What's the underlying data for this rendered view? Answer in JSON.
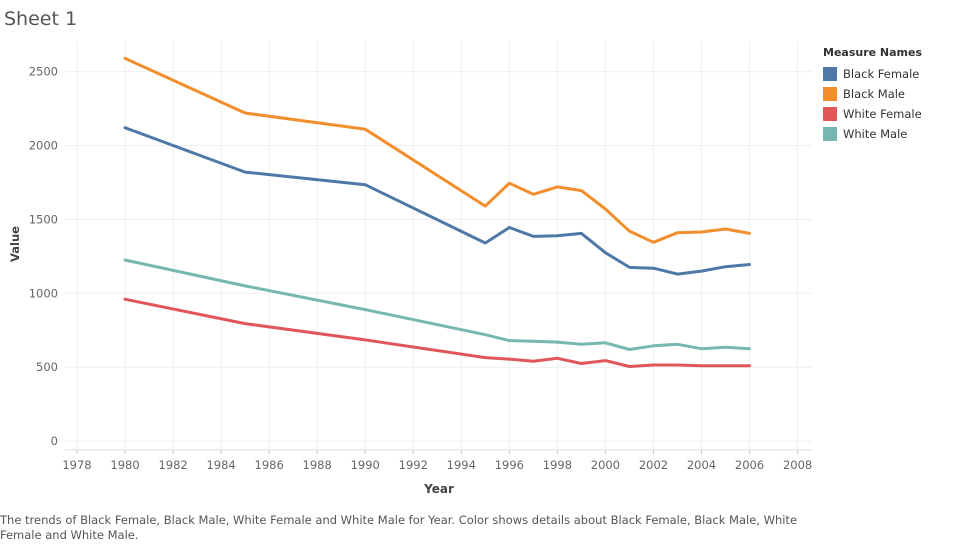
{
  "sheet_title": "Sheet 1",
  "caption": "The trends of Black Female, Black Male, White Female and White Male for Year.  Color shows details about Black Female, Black Male, White Female and White Male.",
  "legend": {
    "title": "Measure Names",
    "items": [
      {
        "label": "Black Female",
        "color": "#4e79a7"
      },
      {
        "label": "Black Male",
        "color": "#f28e2b"
      },
      {
        "label": "White Female",
        "color": "#e15759"
      },
      {
        "label": "White Male",
        "color": "#76b7b2"
      }
    ]
  },
  "chart_data": {
    "type": "line",
    "xlabel": "Year",
    "ylabel": "Value",
    "xlim": [
      1977.5,
      2008.6
    ],
    "ylim": [
      -60,
      2700
    ],
    "xticks": [
      1978,
      1980,
      1982,
      1984,
      1986,
      1988,
      1990,
      1992,
      1994,
      1996,
      1998,
      2000,
      2002,
      2004,
      2006,
      2008
    ],
    "yticks": [
      0,
      500,
      1000,
      1500,
      2000,
      2500
    ],
    "grid": true,
    "legend_position": "right",
    "series": [
      {
        "name": "Black Female",
        "color": "#4e79a7",
        "x": [
          1980,
          1985,
          1990,
          1995,
          1996,
          1997,
          1998,
          1999,
          2000,
          2001,
          2002,
          2003,
          2004,
          2005,
          2006
        ],
        "y": [
          2120,
          1820,
          1735,
          1340,
          1445,
          1385,
          1390,
          1405,
          1275,
          1175,
          1170,
          1130,
          1150,
          1180,
          1195
        ]
      },
      {
        "name": "Black Male",
        "color": "#f28e2b",
        "x": [
          1980,
          1985,
          1990,
          1995,
          1996,
          1997,
          1998,
          1999,
          2000,
          2001,
          2002,
          2003,
          2004,
          2005,
          2006
        ],
        "y": [
          2590,
          2220,
          2110,
          1590,
          1745,
          1670,
          1720,
          1695,
          1570,
          1420,
          1345,
          1410,
          1415,
          1435,
          1405
        ]
      },
      {
        "name": "White Female",
        "color": "#e15759",
        "x": [
          1980,
          1985,
          1990,
          1995,
          1996,
          1997,
          1998,
          1999,
          2000,
          2001,
          2002,
          2003,
          2004,
          2005,
          2006
        ],
        "y": [
          960,
          795,
          685,
          565,
          555,
          540,
          560,
          525,
          545,
          505,
          515,
          515,
          510,
          510,
          510
        ]
      },
      {
        "name": "White Male",
        "color": "#76b7b2",
        "x": [
          1980,
          1985,
          1990,
          1995,
          1996,
          1997,
          1998,
          1999,
          2000,
          2001,
          2002,
          2003,
          2004,
          2005,
          2006
        ],
        "y": [
          1225,
          1050,
          890,
          720,
          680,
          675,
          670,
          655,
          665,
          620,
          645,
          655,
          625,
          635,
          625
        ]
      }
    ]
  }
}
